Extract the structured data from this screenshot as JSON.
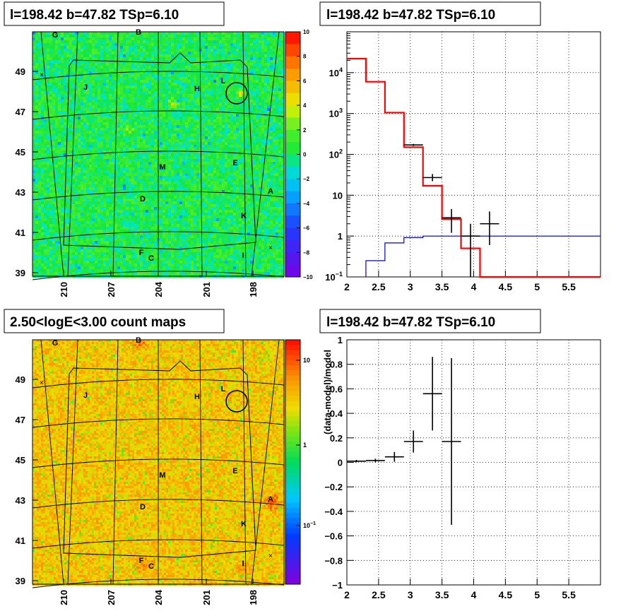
{
  "panels": {
    "top_left": {
      "title": "l=198.42 b=47.82 TSp=6.10"
    },
    "top_right": {
      "title": "l=198.42 b=47.82 TSp=6.10"
    },
    "bottom_left": {
      "title": "2.50<logE<3.00 count maps"
    },
    "bottom_right": {
      "title": "l=198.42 b=47.82 TSp=6.10"
    }
  },
  "colors": {
    "model_line": "#ff0000",
    "background_line": "#0000cc",
    "data_points": "#000000"
  },
  "chart_data": [
    {
      "type": "heatmap",
      "title": "l=198.42 b=47.82 TSp=6.10",
      "xlabel": "",
      "ylabel": "",
      "x_ticks": [
        "210",
        "207",
        "204",
        "201",
        "198"
      ],
      "y_ticks": [
        "39",
        "41",
        "43",
        "45",
        "47",
        "49"
      ],
      "colorbar": {
        "min": -10,
        "max": 10,
        "ticks": [
          "10",
          "8",
          "6",
          "4",
          "2",
          "0",
          "−2",
          "−4",
          "−6",
          "−8",
          "−10"
        ],
        "scale": "linear"
      },
      "sources": [
        "G",
        "B",
        "J",
        "H",
        "L",
        "M",
        "E",
        "A",
        "D",
        "K",
        "F",
        "C",
        "I"
      ],
      "marked_source": "L"
    },
    {
      "type": "line",
      "title": "l=198.42 b=47.82 TSp=6.10",
      "xlabel": "",
      "ylabel": "",
      "xlim": [
        2,
        6
      ],
      "ylim": [
        0.1,
        100000
      ],
      "yscale": "log",
      "grid": true,
      "x_ticks": [
        "2",
        "2.5",
        "3",
        "3.5",
        "4",
        "4.5",
        "5",
        "5.5"
      ],
      "y_ticks": [
        "10^-1",
        "1",
        "10",
        "10^2",
        "10^3",
        "10^4"
      ],
      "model_steps": {
        "edges": [
          2.0,
          2.3,
          2.6,
          2.9,
          3.2,
          3.5,
          3.8,
          4.1,
          6.0
        ],
        "values": [
          22000,
          6000,
          1050,
          150,
          17,
          2.6,
          0.5,
          0.1
        ]
      },
      "background_steps": {
        "edges": [
          2.3,
          2.6,
          2.9,
          3.2,
          6.0
        ],
        "values": [
          0.25,
          0.68,
          0.92,
          1.0
        ]
      },
      "data_points": [
        {
          "x": 3.05,
          "xerr": 0.15,
          "y": 170,
          "ylo": 160,
          "yhi": 180
        },
        {
          "x": 3.35,
          "xerr": 0.15,
          "y": 27,
          "ylo": 22,
          "yhi": 33
        },
        {
          "x": 3.65,
          "xerr": 0.15,
          "y": 2.8,
          "ylo": 1.2,
          "yhi": 4.6
        },
        {
          "x": 3.95,
          "xerr": 0.15,
          "y": 1.0,
          "ylo": 0.1,
          "yhi": 2.0
        },
        {
          "x": 4.25,
          "xerr": 0.15,
          "y": 2.0,
          "ylo": 0.6,
          "yhi": 4.0
        }
      ]
    },
    {
      "type": "heatmap",
      "title": "2.50<logE<3.00 count maps",
      "xlabel": "",
      "ylabel": "",
      "x_ticks": [
        "210",
        "207",
        "204",
        "201",
        "198"
      ],
      "y_ticks": [
        "39",
        "41",
        "43",
        "45",
        "47",
        "49"
      ],
      "colorbar": {
        "scale": "log",
        "ticks": [
          "10",
          "1",
          "10^-1"
        ]
      },
      "sources": [
        "G",
        "B",
        "J",
        "H",
        "L",
        "M",
        "E",
        "A",
        "D",
        "K",
        "F",
        "C",
        "I"
      ],
      "marked_source": "L"
    },
    {
      "type": "scatter",
      "title": "l=198.42 b=47.82 TSp=6.10",
      "xlabel": "",
      "ylabel": "(data-model)/model",
      "xlim": [
        2,
        6
      ],
      "ylim": [
        -1,
        1
      ],
      "grid": true,
      "x_ticks": [
        "2",
        "2.5",
        "3",
        "3.5",
        "4",
        "4.5",
        "5",
        "5.5"
      ],
      "y_ticks": [
        "1",
        "0.8",
        "0.6",
        "0.4",
        "0.2",
        "0",
        "−0.2",
        "−0.4",
        "−0.6",
        "−0.8",
        "−1"
      ],
      "points": [
        {
          "x": 2.15,
          "xerr": 0.15,
          "y": 0.01,
          "yerr": 0.01
        },
        {
          "x": 2.45,
          "xerr": 0.15,
          "y": 0.015,
          "yerr": 0.015
        },
        {
          "x": 2.75,
          "xerr": 0.15,
          "y": 0.045,
          "yerr": 0.04
        },
        {
          "x": 3.05,
          "xerr": 0.15,
          "y": 0.17,
          "yerr": 0.09
        },
        {
          "x": 3.35,
          "xerr": 0.15,
          "y": 0.56,
          "yerr": 0.3
        },
        {
          "x": 3.65,
          "xerr": 0.15,
          "y": 0.17,
          "yerr": 0.68
        }
      ]
    }
  ]
}
